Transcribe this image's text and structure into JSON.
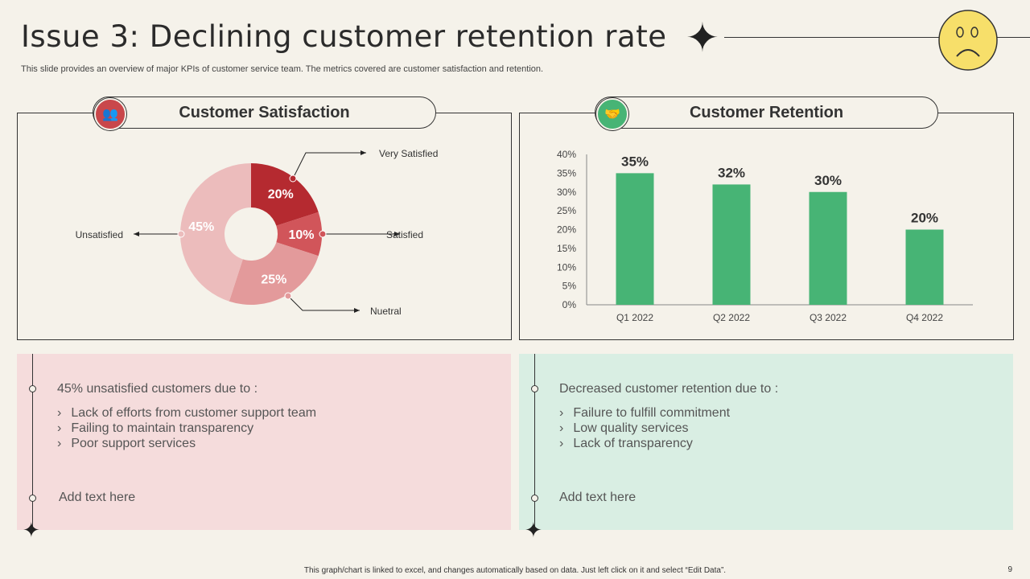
{
  "header": {
    "title": "Issue 3: Declining customer retention rate",
    "subtitle": "This slide provides an overview of major KPIs of customer service team. The metrics covered are customer satisfaction and retention.",
    "mood_icon": "sad-face-icon"
  },
  "panels": {
    "satisfaction_title": "Customer Satisfaction",
    "retention_title": "Customer Retention",
    "satisfaction_icon": "people-group-icon",
    "retention_icon": "hand-holding-people-icon"
  },
  "chart_data": [
    {
      "type": "pie",
      "donut": true,
      "categories": [
        "Very Satisfied",
        "Satisfied",
        "Nuetral",
        "Unsatisfied"
      ],
      "values": [
        20,
        10,
        25,
        45
      ],
      "data_labels": [
        "20%",
        "10%",
        "25%",
        "45%"
      ],
      "colors": [
        "#b52a30",
        "#d1555a",
        "#e39a9b",
        "#ecbcbc"
      ]
    },
    {
      "type": "bar",
      "categories": [
        "Q1 2022",
        "Q2 2022",
        "Q3 2022",
        "Q4 2022"
      ],
      "values": [
        35,
        32,
        30,
        20
      ],
      "data_labels": [
        "35%",
        "32%",
        "30%",
        "20%"
      ],
      "ylim": [
        0,
        40
      ],
      "yticks": [
        "0%",
        "5%",
        "10%",
        "15%",
        "20%",
        "25%",
        "30%",
        "35%",
        "40%"
      ],
      "color": "#47b475",
      "grid": false
    }
  ],
  "left_box": {
    "heading": "45% unsatisfied customers due to :",
    "items": [
      "Lack of efforts from customer support team",
      "Failing to maintain transparency",
      "Poor support services"
    ],
    "add": "Add text here",
    "bg": "#f5dcdc"
  },
  "right_box": {
    "heading": "Decreased customer retention due to :",
    "items": [
      "Failure to fulfill commitment",
      "Low quality services",
      "Lack of transparency"
    ],
    "add": "Add text here",
    "bg": "#d9eee3"
  },
  "footer": {
    "note": "This graph/chart is linked to excel,  and changes automatically based on data. Just left click on it and select “Edit Data”.",
    "page": "9"
  }
}
